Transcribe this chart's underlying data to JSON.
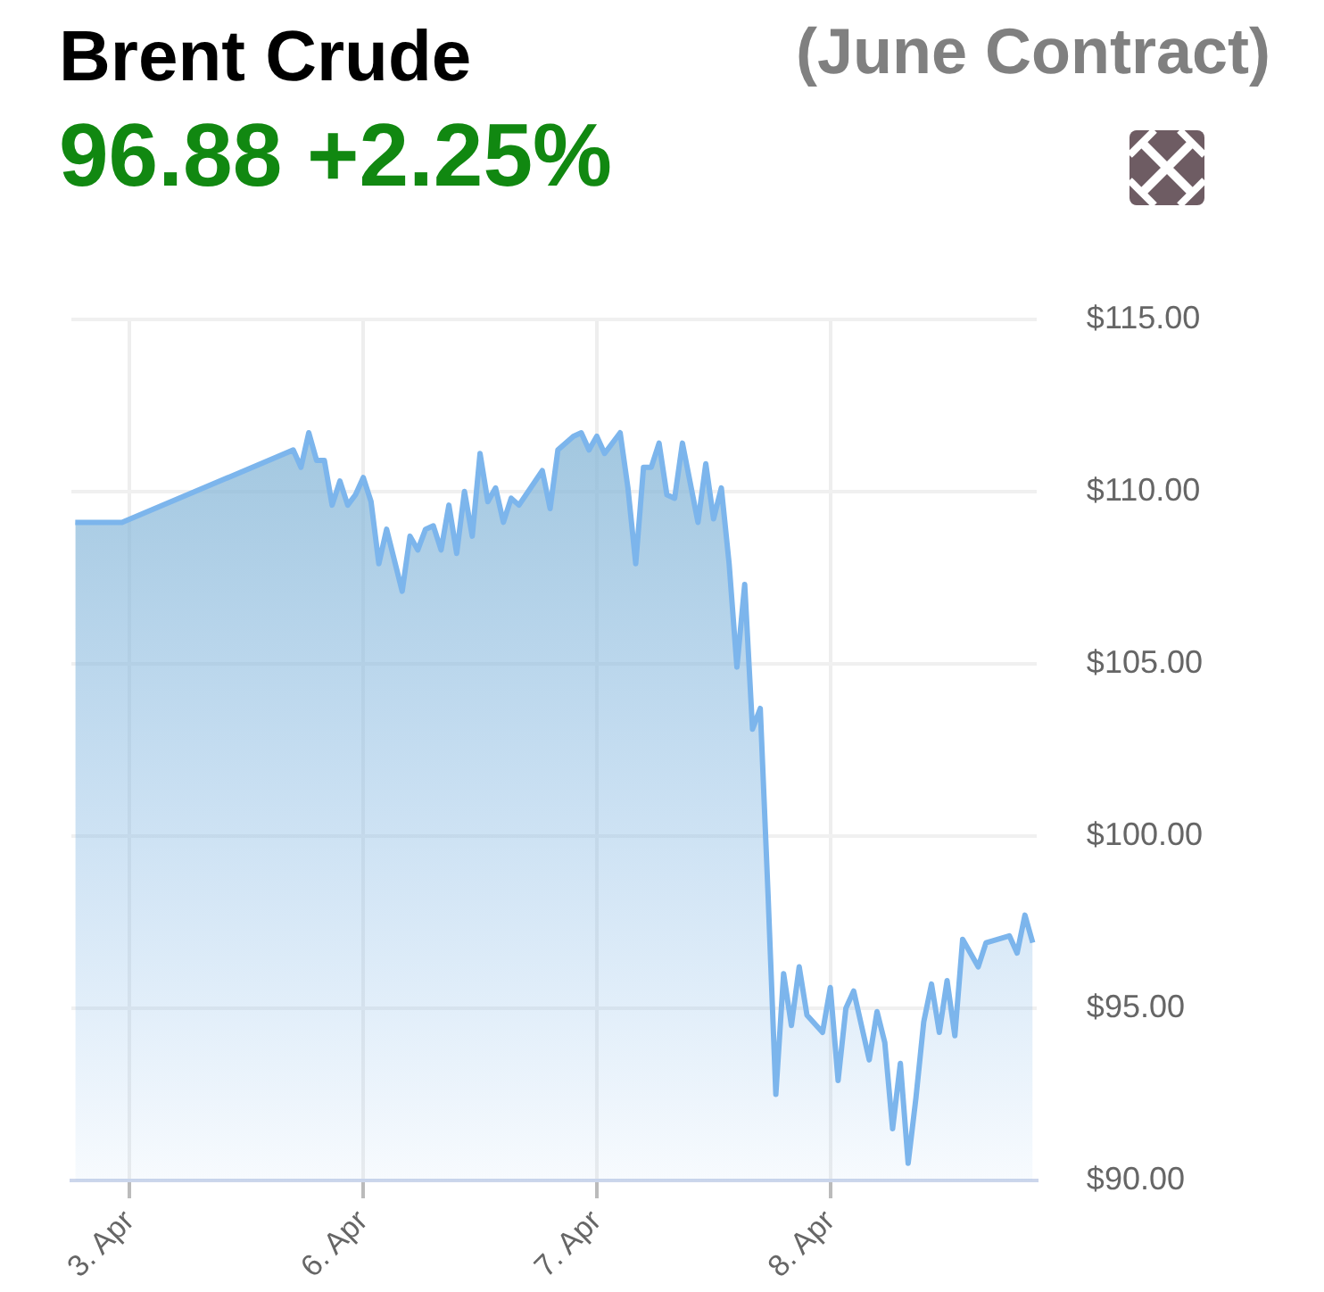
{
  "chart_data": {
    "type": "area",
    "title": "Brent Crude",
    "subtitle": "(June Contract)",
    "annotations": [
      "96.88 +2.25%"
    ],
    "categories": [
      null,
      null,
      null,
      null,
      null,
      null,
      null,
      "3. Apr",
      null,
      null,
      null,
      null,
      null,
      null,
      null,
      null,
      null,
      null,
      null,
      null,
      null,
      null,
      null,
      null,
      null,
      null,
      null,
      null,
      null,
      null,
      null,
      null,
      null,
      null,
      null,
      null,
      null,
      "6. Apr",
      null,
      null,
      null,
      null,
      null,
      null,
      null,
      null,
      null,
      null,
      null,
      null,
      null,
      null,
      null,
      null,
      null,
      null,
      null,
      null,
      null,
      null,
      null,
      null,
      null,
      null,
      null,
      null,
      null,
      "7. Apr",
      null,
      null,
      null,
      null,
      null,
      null,
      null,
      null,
      null,
      null,
      null,
      null,
      null,
      null,
      null,
      null,
      null,
      null,
      null,
      null,
      null,
      null,
      null,
      null,
      null,
      null,
      null,
      null,
      null,
      "8. Apr",
      null,
      null,
      null,
      null,
      null,
      null,
      null,
      null,
      null,
      null,
      null,
      null,
      null,
      null,
      null,
      null,
      null,
      null,
      null,
      null,
      null,
      null,
      null,
      null,
      null,
      null
    ],
    "series": [
      {
        "color": "#7cb5ec",
        "values": [
          109.1,
          null,
          null,
          null,
          null,
          null,
          109.1,
          null,
          null,
          null,
          null,
          null,
          null,
          null,
          null,
          null,
          null,
          null,
          null,
          null,
          null,
          null,
          null,
          null,
          null,
          null,
          null,
          null,
          111.2,
          110.7,
          111.7,
          110.9,
          110.9,
          109.6,
          110.3,
          109.6,
          109.9,
          110.4,
          109.7,
          107.9,
          108.9,
          null,
          107.1,
          108.7,
          108.3,
          108.9,
          109.0,
          108.3,
          109.6,
          108.2,
          110.0,
          108.7,
          111.1,
          109.7,
          110.1,
          109.1,
          109.8,
          109.6,
          null,
          null,
          110.6,
          109.5,
          111.2,
          null,
          111.6,
          111.7,
          111.2,
          111.6,
          111.1,
          null,
          111.7,
          110.1,
          107.9,
          110.7,
          110.7,
          111.4,
          109.9,
          109.8,
          111.4,
          null,
          109.1,
          110.8,
          109.2,
          110.1,
          107.9,
          104.9,
          107.3,
          103.1,
          103.7,
          98.3,
          92.5,
          96.0,
          94.5,
          96.2,
          94.8,
          null,
          94.3,
          95.6,
          92.9,
          95.0,
          95.5,
          null,
          93.5,
          94.9,
          94.0,
          91.5,
          93.4,
          90.5,
          92.4,
          94.6,
          95.7,
          94.3,
          95.8,
          94.2,
          97.0,
          null,
          96.2,
          96.9,
          null,
          null,
          97.1,
          96.6,
          97.7,
          96.9
        ]
      }
    ],
    "ylim": [
      90,
      115
    ],
    "yticks": [
      {
        "value": 90,
        "label": "$90.00"
      },
      {
        "value": 95,
        "label": "$95.00"
      },
      {
        "value": 100,
        "label": "$100.00"
      },
      {
        "value": 105,
        "label": "$105.00"
      },
      {
        "value": 110,
        "label": "$110.00"
      },
      {
        "value": 115,
        "label": "$115.00"
      }
    ],
    "grid": true,
    "marker": "none"
  }
}
